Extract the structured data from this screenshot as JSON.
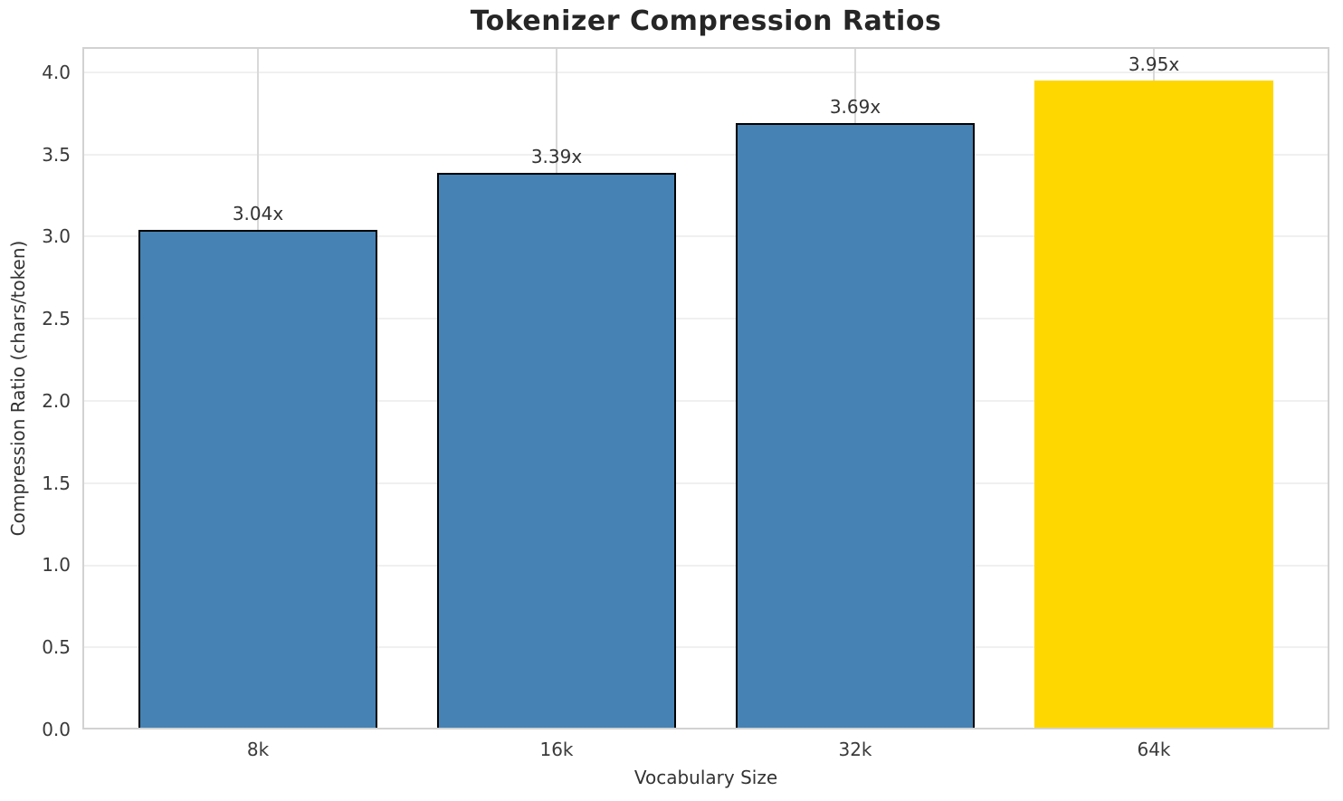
{
  "figure": {
    "kind": "bar-chart-figure"
  },
  "palette": {
    "bar_default": "#4682B4",
    "bar_highlight": "#FFD700",
    "bar_edge": "#000000",
    "grid_horizontal": "#f0f0f0",
    "grid_vertical": "#d9d9d9",
    "spine": "#d2d2d2",
    "text": "#333333"
  },
  "chart_data": {
    "type": "bar",
    "title": "Tokenizer Compression Ratios",
    "xlabel": "Vocabulary Size",
    "ylabel": "Compression Ratio (chars/token)",
    "categories": [
      "8k",
      "16k",
      "32k",
      "64k"
    ],
    "values": [
      3.04,
      3.39,
      3.69,
      3.95
    ],
    "bar_labels": [
      "3.04x",
      "3.39x",
      "3.69x",
      "3.95x"
    ],
    "bar_colors": [
      "#4682B4",
      "#4682B4",
      "#4682B4",
      "#FFD700"
    ],
    "bar_edge_colors": [
      "#000000",
      "#000000",
      "#000000",
      "#FFD700"
    ],
    "ytick_labels": [
      "0.0",
      "0.5",
      "1.0",
      "1.5",
      "2.0",
      "2.5",
      "3.0",
      "3.5",
      "4.0"
    ],
    "yticks": [
      0.0,
      0.5,
      1.0,
      1.5,
      2.0,
      2.5,
      3.0,
      3.5,
      4.0
    ],
    "ylim": [
      0,
      4.154
    ],
    "grid": true,
    "legend_position": "none"
  }
}
